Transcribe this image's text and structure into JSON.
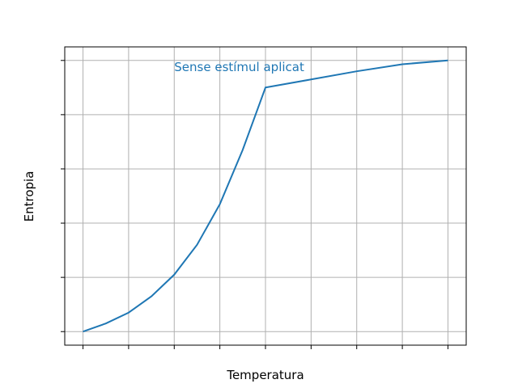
{
  "chart_data": {
    "type": "line",
    "title": "",
    "xlabel": "Temperatura",
    "ylabel": "Entropia",
    "xlim": [
      -0.4,
      8.4
    ],
    "ylim": [
      -0.25,
      5.25
    ],
    "x_ticks": [
      0,
      1,
      2,
      3,
      4,
      5,
      6,
      7,
      8
    ],
    "y_ticks": [
      0,
      1,
      2,
      3,
      4,
      5
    ],
    "tick_labels_shown": false,
    "grid": true,
    "series": [
      {
        "color": "#1f77b4",
        "points": [
          [
            0,
            0.0
          ],
          [
            0.5,
            0.15
          ],
          [
            1,
            0.35
          ],
          [
            1.5,
            0.65
          ],
          [
            2,
            1.05
          ],
          [
            2.5,
            1.6
          ],
          [
            3,
            2.35
          ],
          [
            3.5,
            3.35
          ],
          [
            4,
            4.5
          ],
          [
            5,
            4.65
          ],
          [
            6,
            4.8
          ],
          [
            7,
            4.93
          ],
          [
            8,
            5.0
          ]
        ]
      }
    ],
    "annotation": {
      "text": "Sense estímul aplicat",
      "x": 2.0,
      "y": 4.8,
      "color": "#1f77b4"
    }
  }
}
